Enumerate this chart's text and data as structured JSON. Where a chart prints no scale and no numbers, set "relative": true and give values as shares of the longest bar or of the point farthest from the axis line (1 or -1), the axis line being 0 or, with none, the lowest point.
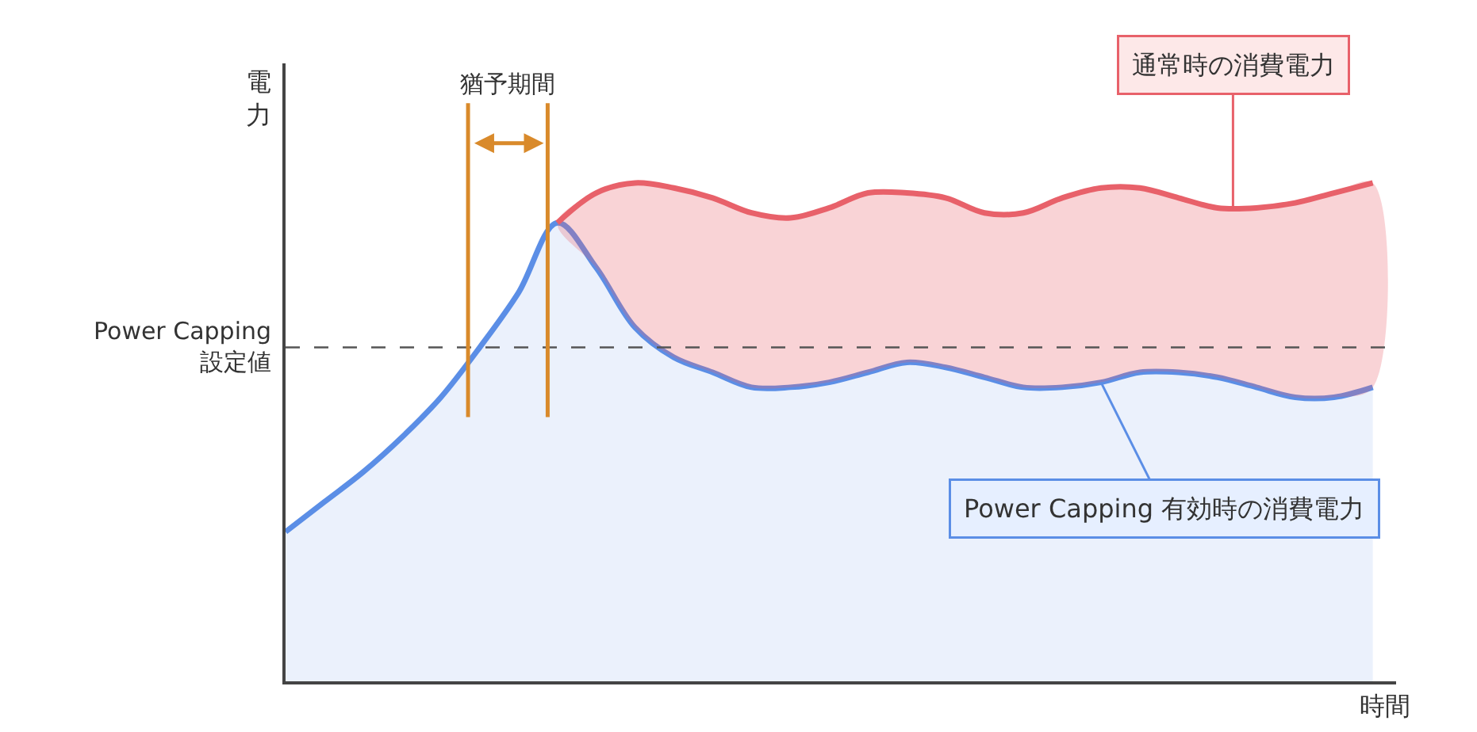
{
  "chart_data": {
    "type": "area",
    "relative": true,
    "xlabel": "時間",
    "ylabel": "電力",
    "categories": [
      null,
      null,
      null,
      null,
      null,
      null,
      null,
      null,
      null,
      null,
      null,
      null,
      null,
      null,
      null,
      null,
      null,
      null,
      null,
      null,
      null,
      null,
      null,
      null,
      null,
      null,
      null,
      null,
      null
    ],
    "series": [
      {
        "color": "#5b8ee6",
        "values": [
          0.3,
          0.36,
          0.42,
          0.49,
          0.57,
          0.67,
          0.78,
          0.92,
          0.83,
          0.71,
          0.65,
          0.62,
          0.59,
          0.59,
          0.6,
          0.62,
          0.64,
          0.63,
          0.61,
          0.59,
          0.59,
          0.6,
          0.62,
          0.62,
          0.61,
          0.59,
          0.57,
          0.57,
          0.59
        ]
      },
      {
        "color": "#e8616a",
        "values": [
          null,
          null,
          null,
          null,
          null,
          null,
          null,
          0.92,
          0.98,
          1.0,
          0.99,
          0.97,
          0.94,
          0.93,
          0.95,
          0.98,
          0.98,
          0.97,
          0.94,
          0.94,
          0.97,
          0.99,
          0.99,
          0.97,
          0.95,
          0.95,
          0.96,
          0.98,
          1.0
        ]
      }
    ],
    "ref_lines": [
      {
        "axis": "y",
        "value": 0.67,
        "label": "Power Capping\n設定値",
        "color": "#555555",
        "line_style": "dashed"
      }
    ],
    "annotations": [
      "猶予期間",
      "通常時の消費電力",
      "Power Capping 有効時の消費電力"
    ]
  }
}
